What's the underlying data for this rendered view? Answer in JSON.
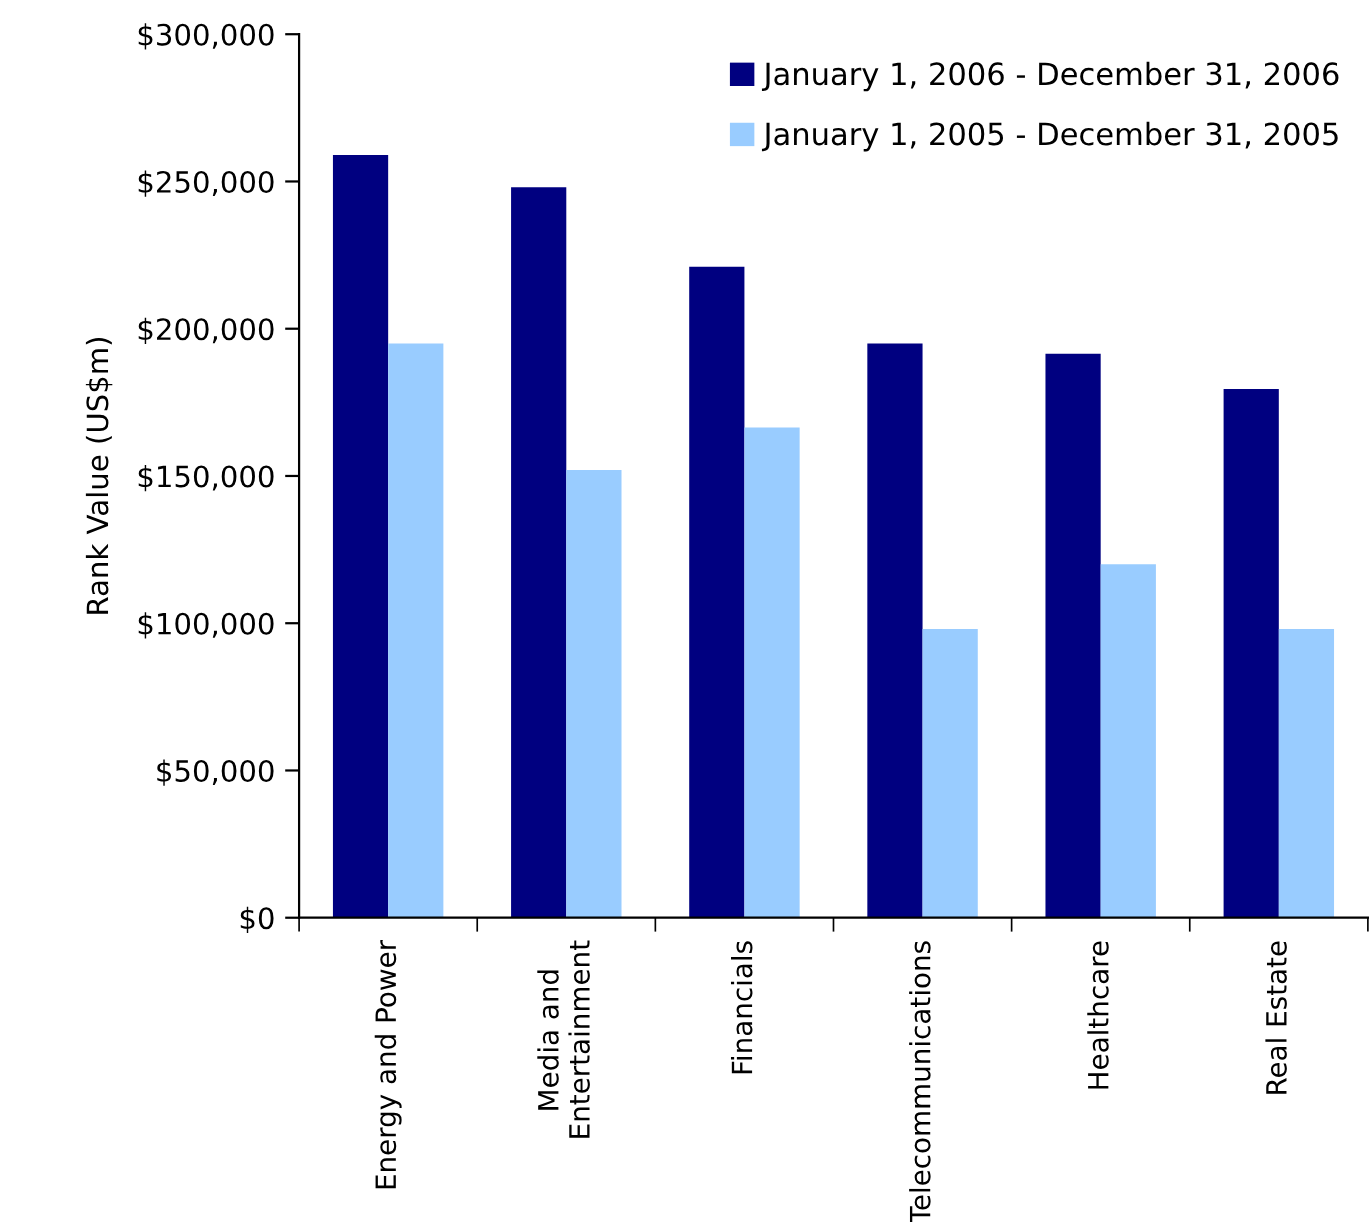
{
  "chart_data": {
    "type": "bar",
    "ylabel": "Rank Value (US$m)",
    "categories": [
      "Energy and Power",
      "Media and\nEntertainment",
      "Financials",
      "Telecommunications",
      "Healthcare",
      "Real Estate"
    ],
    "series": [
      {
        "name": "January 1, 2006 - December 31, 2006",
        "color": "#000080",
        "values": [
          259000,
          248000,
          221000,
          195000,
          191500,
          179500
        ]
      },
      {
        "name": "January 1, 2005 - December 31, 2005",
        "color": "#99ccff",
        "values": [
          195000,
          152000,
          166500,
          98000,
          120000,
          98000
        ]
      }
    ],
    "ylim": [
      0,
      300000
    ],
    "yticks": [
      {
        "value": 0,
        "label": "$0"
      },
      {
        "value": 50000,
        "label": "$50,000"
      },
      {
        "value": 100000,
        "label": "$100,000"
      },
      {
        "value": 150000,
        "label": "$150,000"
      },
      {
        "value": 200000,
        "label": "$200,000"
      },
      {
        "value": 250000,
        "label": "$250,000"
      },
      {
        "value": 300000,
        "label": "$300,000"
      }
    ],
    "grid": false,
    "legend": "top right"
  }
}
